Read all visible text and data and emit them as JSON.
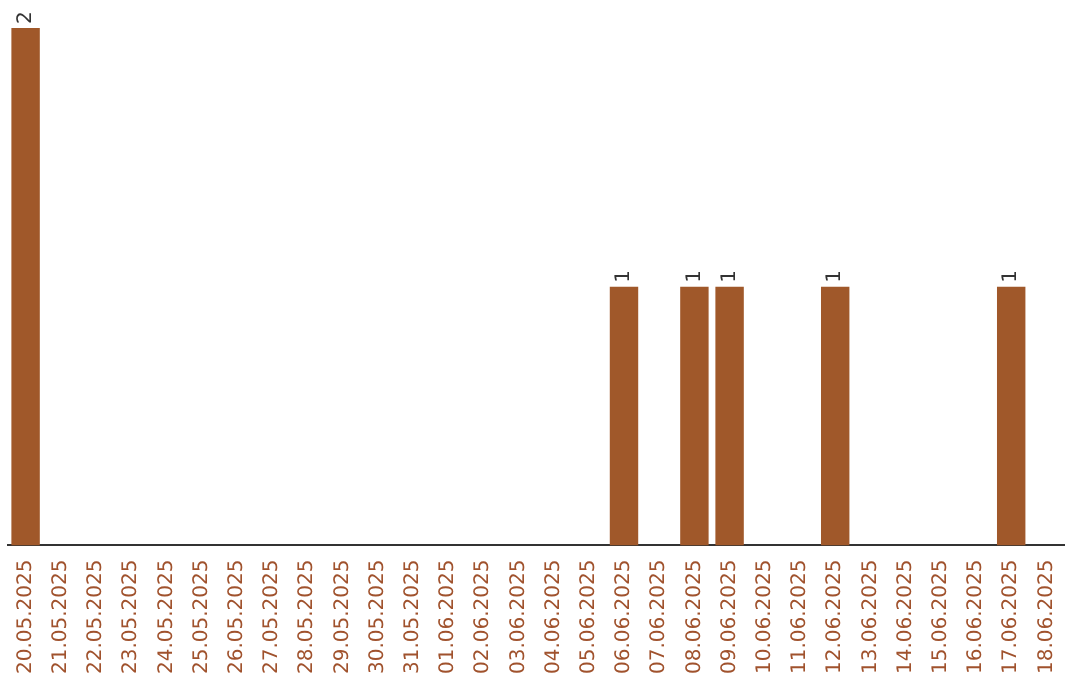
{
  "chart_data": {
    "type": "bar",
    "categories": [
      "20.05.2025",
      "21.05.2025",
      "22.05.2025",
      "23.05.2025",
      "24.05.2025",
      "25.05.2025",
      "26.05.2025",
      "27.05.2025",
      "28.05.2025",
      "29.05.2025",
      "30.05.2025",
      "31.05.2025",
      "01.06.2025",
      "02.06.2025",
      "03.06.2025",
      "04.06.2025",
      "05.06.2025",
      "06.06.2025",
      "07.06.2025",
      "08.06.2025",
      "09.06.2025",
      "10.06.2025",
      "11.06.2025",
      "12.06.2025",
      "13.06.2025",
      "14.06.2025",
      "15.06.2025",
      "16.06.2025",
      "17.06.2025",
      "18.06.2025"
    ],
    "values": [
      2,
      0,
      0,
      0,
      0,
      0,
      0,
      0,
      0,
      0,
      0,
      0,
      0,
      0,
      0,
      0,
      0,
      1,
      0,
      1,
      1,
      0,
      0,
      1,
      0,
      0,
      0,
      0,
      1,
      0
    ],
    "value_labels": [
      "2",
      null,
      null,
      null,
      null,
      null,
      null,
      null,
      null,
      null,
      null,
      null,
      null,
      null,
      null,
      null,
      null,
      "1",
      null,
      "1",
      "1",
      null,
      null,
      "1",
      null,
      null,
      null,
      null,
      "1",
      null
    ],
    "color": "#a0582a",
    "grid": false,
    "legend": false
  }
}
